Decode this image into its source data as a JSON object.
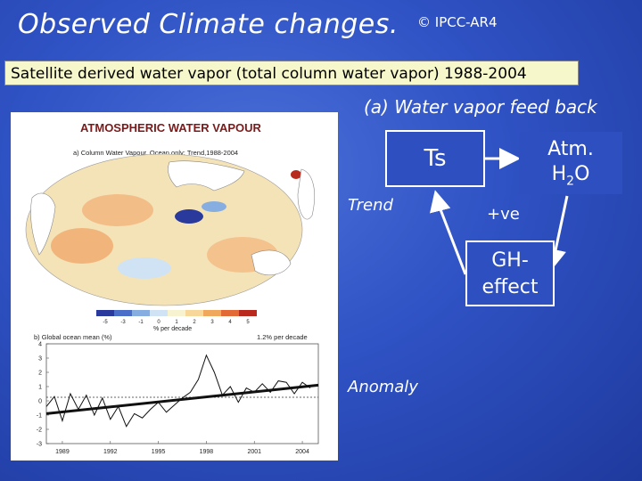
{
  "slide": {
    "title": "Observed Climate changes.",
    "credit": "© IPCC-AR4",
    "subtitle": "Satellite derived water vapor (total column water vapor) 1988-2004",
    "feedback_heading": "(a) Water vapor feed back"
  },
  "figure": {
    "heading": "ATMOSPHERIC WATER VAPOUR",
    "map_caption": "a) Column Water Vapour, Ocean only: Trend,1988-2004",
    "colorbar_ticks": [
      "-5",
      "-3",
      "-1",
      "0",
      "1",
      "2",
      "3",
      "4",
      "5"
    ],
    "colorbar_colors": [
      "#2a3a9c",
      "#4b6fc8",
      "#86aee0",
      "#cfe3f4",
      "#f7f2d0",
      "#f7d79a",
      "#f0a85c",
      "#e26a36",
      "#b82a1e"
    ],
    "colorbar_unit": "% per decade",
    "series_caption": "b) Global ocean mean (%)",
    "trend_note": "1.2% per decade",
    "y_ticks": [
      "4",
      "3",
      "2",
      "1",
      "0",
      "-1",
      "-2",
      "-3"
    ],
    "x_ticks": [
      "1989",
      "1992",
      "1995",
      "1998",
      "2001",
      "2004"
    ]
  },
  "diagram": {
    "ts": "Ts",
    "atm_line1": "Atm.",
    "atm_h2o_main": "H",
    "atm_h2o_sub": "2",
    "atm_h2o_tail": "O",
    "gh_line1": "GH-",
    "gh_line2": "effect",
    "trend": "Trend",
    "positive": "+ve",
    "anomaly": "Anomaly"
  },
  "chart_data": {
    "type": "line",
    "title": "b) Global ocean mean (%)",
    "xlabel": "",
    "ylabel": "",
    "xlim": [
      1988,
      2005
    ],
    "ylim": [
      -3,
      4
    ],
    "x": [
      1988.0,
      1988.5,
      1989.0,
      1989.5,
      1990.0,
      1990.5,
      1991.0,
      1991.5,
      1992.0,
      1992.5,
      1993.0,
      1993.5,
      1994.0,
      1994.5,
      1995.0,
      1995.5,
      1996.0,
      1996.5,
      1997.0,
      1997.5,
      1998.0,
      1998.5,
      1999.0,
      1999.5,
      2000.0,
      2000.5,
      2001.0,
      2001.5,
      2002.0,
      2002.5,
      2003.0,
      2003.5,
      2004.0,
      2004.5
    ],
    "series": [
      {
        "values": [
          -0.4,
          0.3,
          -1.4,
          0.5,
          -0.6,
          0.4,
          -1.0,
          0.2,
          -1.3,
          -0.4,
          -1.8,
          -0.9,
          -1.2,
          -0.6,
          -0.1,
          -0.8,
          -0.3,
          0.2,
          0.6,
          1.5,
          3.2,
          2.0,
          0.4,
          1.0,
          -0.1,
          0.9,
          0.6,
          1.2,
          0.6,
          1.4,
          1.3,
          0.5,
          1.3,
          0.9
        ]
      }
    ],
    "trend": {
      "start": [
        1988,
        -0.9
      ],
      "end": [
        2005,
        1.1
      ]
    },
    "annotation": "1.2% per decade"
  }
}
